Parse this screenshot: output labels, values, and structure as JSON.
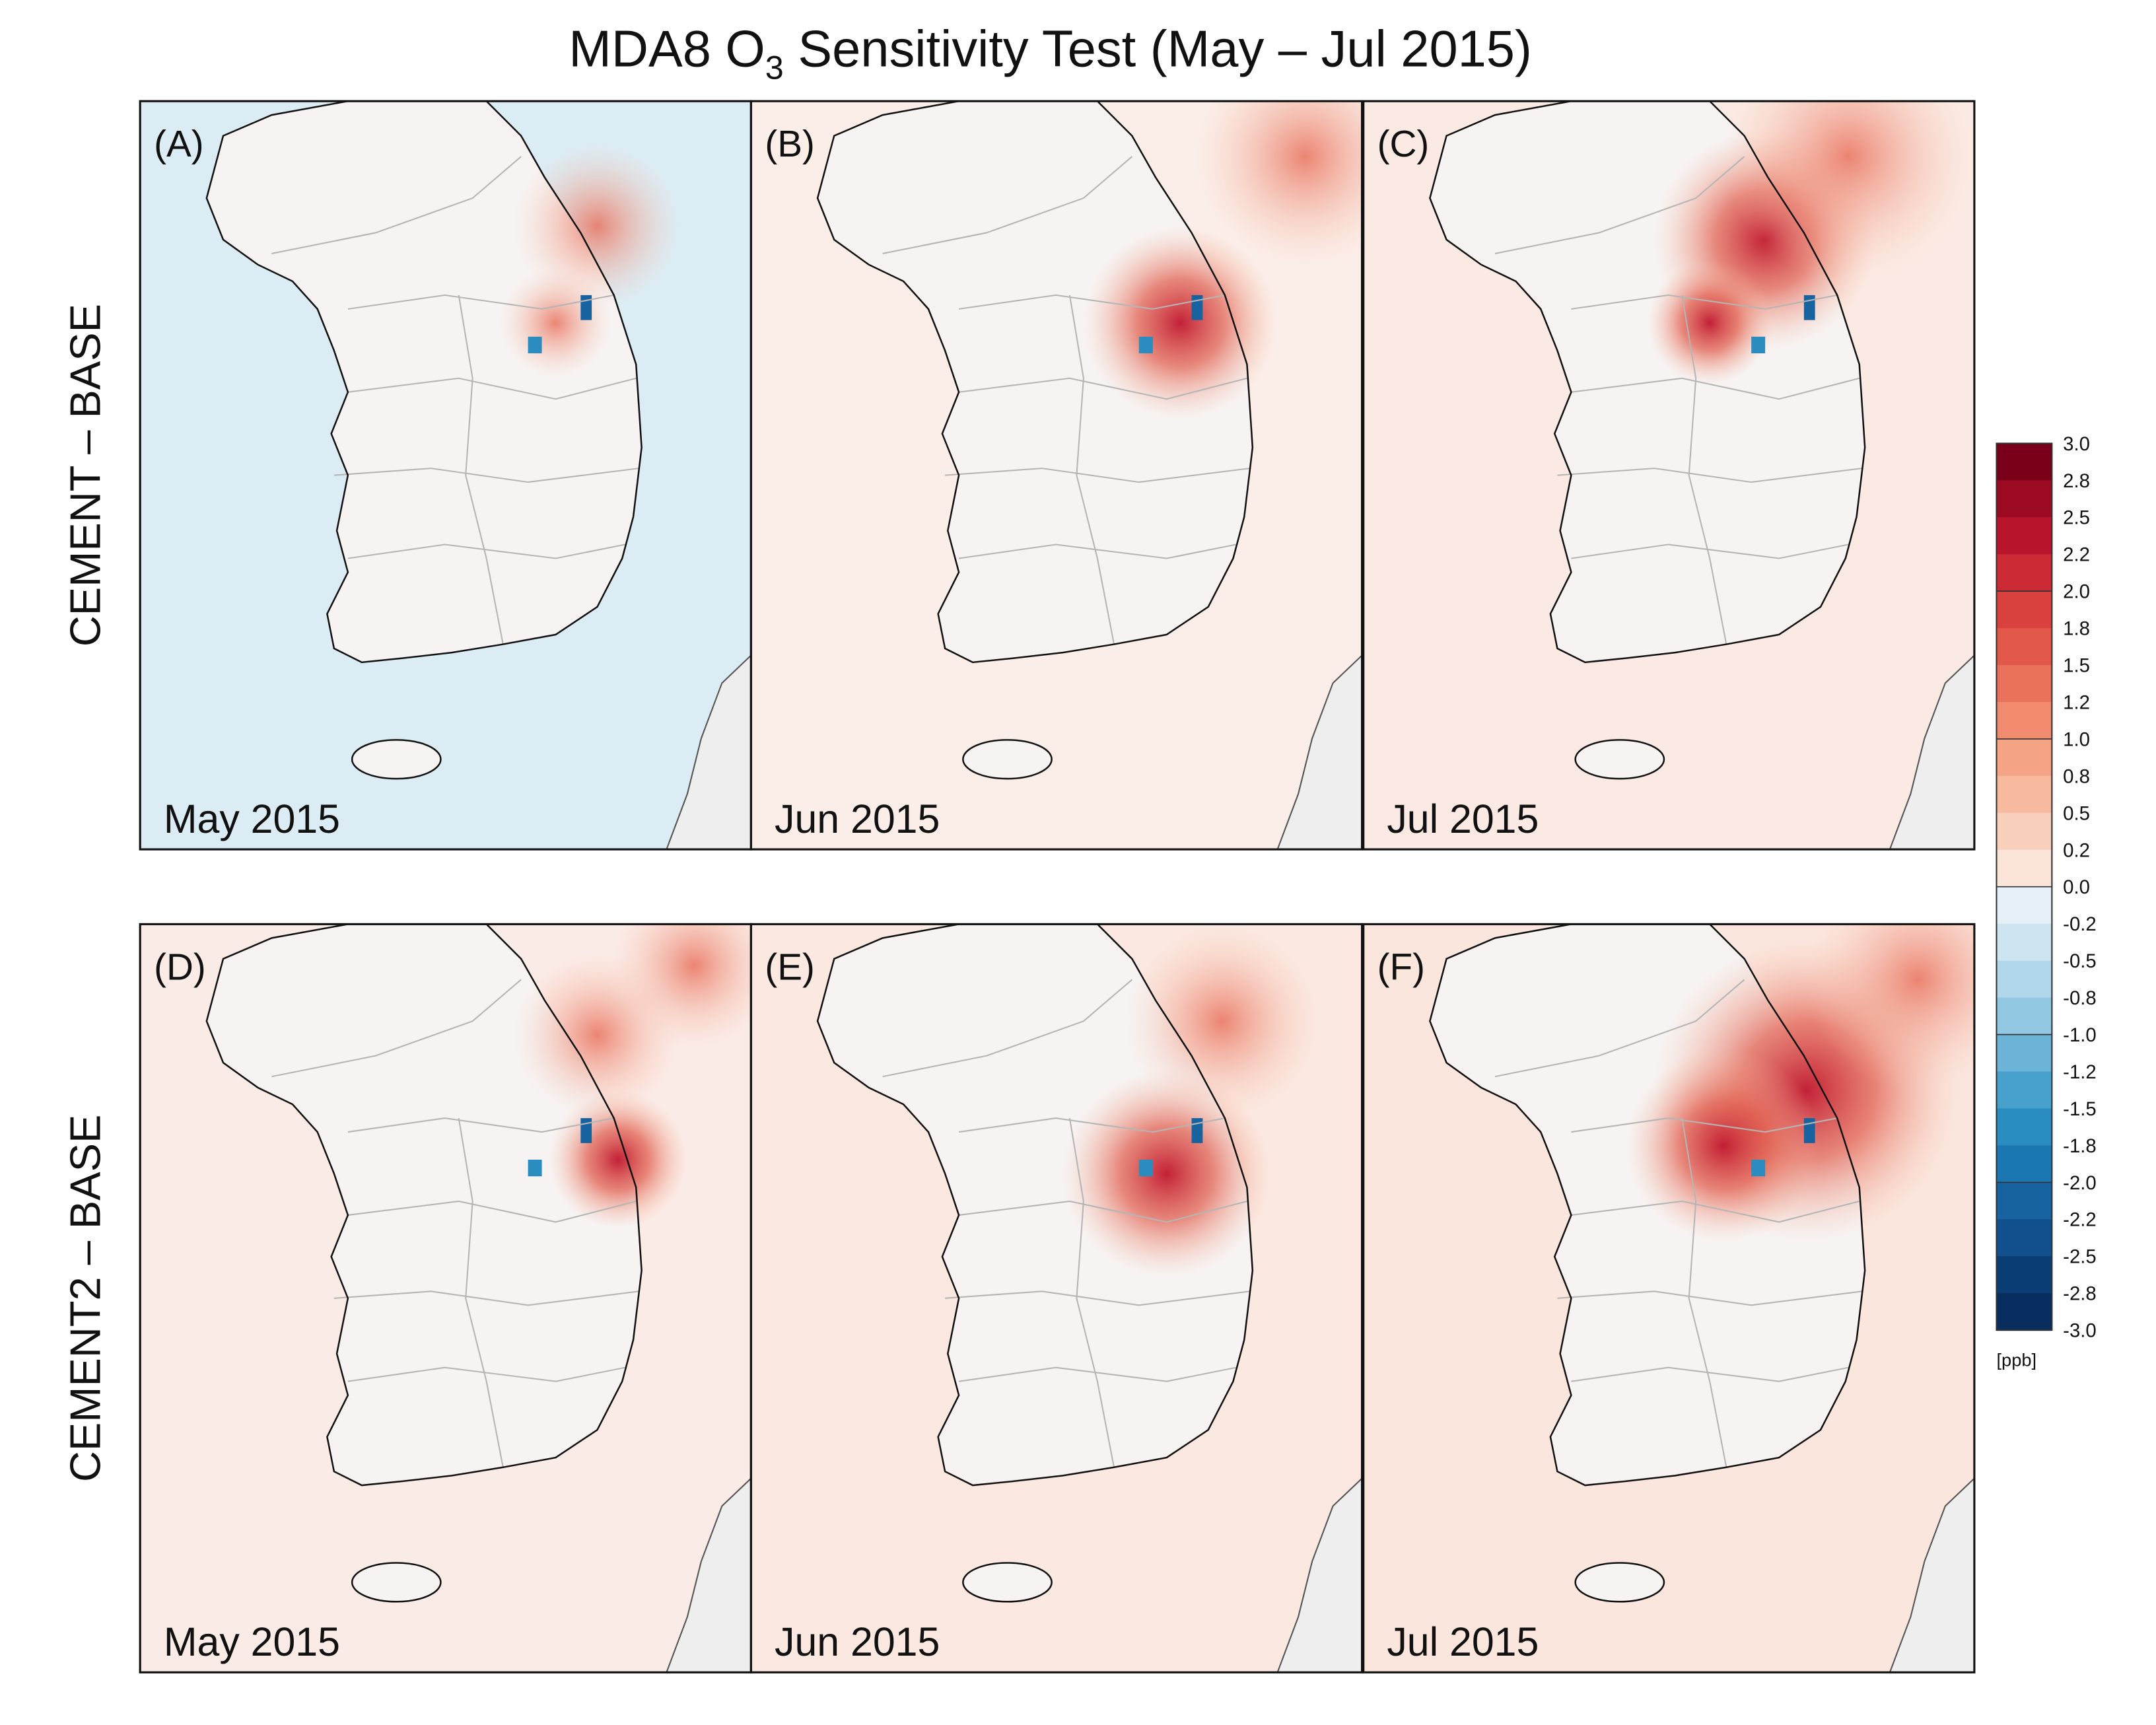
{
  "title": {
    "parts": [
      "MDA8 O",
      "3",
      " Sensitivity Test (May – Jul 2015)"
    ]
  },
  "rows": [
    "CEMENT – BASE",
    "CEMENT2 – BASE"
  ],
  "panels": [
    {
      "label": "(A)",
      "date": "May 2015"
    },
    {
      "label": "(B)",
      "date": "Jun 2015"
    },
    {
      "label": "(C)",
      "date": "Jul 2015"
    },
    {
      "label": "(D)",
      "date": "May 2015"
    },
    {
      "label": "(E)",
      "date": "Jun 2015"
    },
    {
      "label": "(F)",
      "date": "Jul 2015"
    }
  ],
  "colorbar": {
    "ticks": [
      "3.0",
      "2.8",
      "2.5",
      "2.2",
      "2.0",
      "1.8",
      "1.5",
      "1.2",
      "1.0",
      "0.8",
      "0.5",
      "0.2",
      "0.0",
      "-0.2",
      "-0.5",
      "-0.8",
      "-1.0",
      "-1.2",
      "-1.5",
      "-1.8",
      "-2.0",
      "-2.2",
      "-2.5",
      "-2.8",
      "-3.0"
    ],
    "unit": "[ppb]",
    "colors": [
      "#7a0019",
      "#9b0a22",
      "#b8142b",
      "#cc2a34",
      "#d9413e",
      "#e2594b",
      "#ea725c",
      "#f08b70",
      "#f4a385",
      "#f7ba9e",
      "#f9d0bb",
      "#fbe4d8",
      "#e6f1f7",
      "#cde5f0",
      "#b1d7ea",
      "#93c8e2",
      "#6db5d8",
      "#48a1cd",
      "#2b8cc0",
      "#1b77b1",
      "#1763a0",
      "#12508d",
      "#0c3e76",
      "#072e5e"
    ]
  }
}
